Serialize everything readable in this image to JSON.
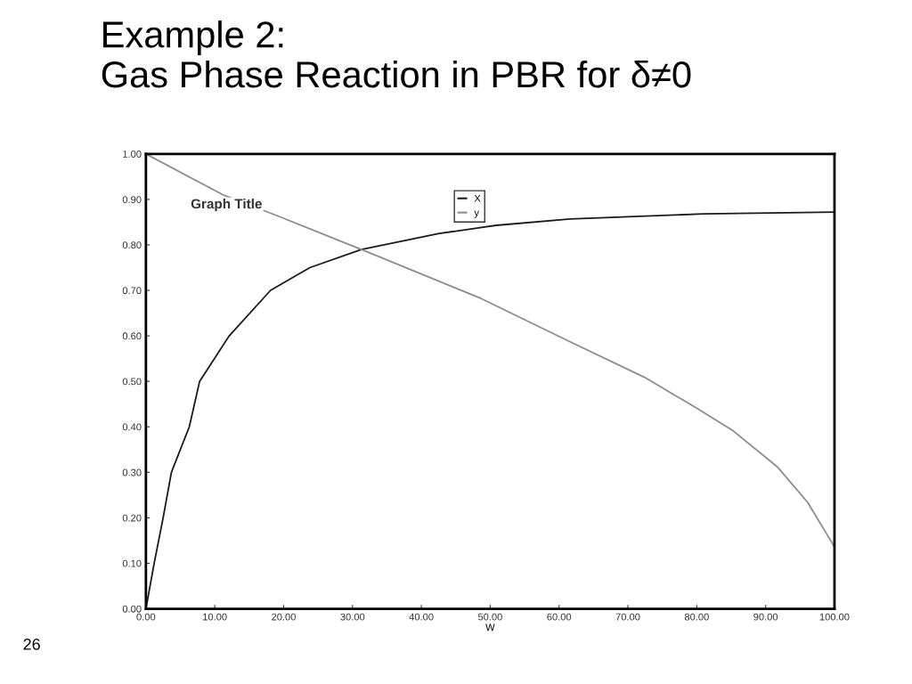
{
  "chart_data": {
    "type": "line",
    "title": "Example 2:\nGas Phase Reaction in PBR for δ≠0",
    "xlabel": "W",
    "annotations": [
      "Graph Title",
      "26"
    ],
    "series": [
      {
        "name": "X",
        "color": "#1a1a1a",
        "x": [
          0,
          1.2,
          2.5,
          3.7,
          6.3,
          7.8,
          12.1,
          18.1,
          23.8,
          31.3,
          42.6,
          50.9,
          61.6,
          81,
          100
        ],
        "values": [
          0,
          0.1,
          0.2,
          0.3,
          0.4,
          0.5,
          0.6,
          0.7,
          0.75,
          0.79,
          0.825,
          0.843,
          0.857,
          0.868,
          0.872
        ]
      },
      {
        "name": "y",
        "color": "#8c8c8c",
        "x": [
          0,
          11.2,
          19.4,
          31.3,
          48.7,
          61.6,
          72.4,
          76.2,
          80.1,
          85.3,
          91.7,
          96.1,
          100
        ],
        "values": [
          1.0,
          0.91,
          0.862,
          0.79,
          0.682,
          0.587,
          0.509,
          0.475,
          0.44,
          0.391,
          0.312,
          0.234,
          0.136
        ]
      }
    ],
    "xlim": [
      0,
      100
    ],
    "ylim": [
      0,
      1
    ],
    "xticks": [
      {
        "value": 0,
        "label": "0.00"
      },
      {
        "value": 10,
        "label": "10.00"
      },
      {
        "value": 20,
        "label": "20.00"
      },
      {
        "value": 30,
        "label": "30.00"
      },
      {
        "value": 40,
        "label": "40.00"
      },
      {
        "value": 50,
        "label": "50.00"
      },
      {
        "value": 60,
        "label": "60.00"
      },
      {
        "value": 70,
        "label": "70.00"
      },
      {
        "value": 80,
        "label": "80.00"
      },
      {
        "value": 90,
        "label": "90.00"
      },
      {
        "value": 100,
        "label": "100.00"
      }
    ],
    "yticks": [
      {
        "value": 0,
        "label": "0.00"
      },
      {
        "value": 0.1,
        "label": "0.10"
      },
      {
        "value": 0.2,
        "label": "0.20"
      },
      {
        "value": 0.3,
        "label": "0.30"
      },
      {
        "value": 0.4,
        "label": "0.40"
      },
      {
        "value": 0.5,
        "label": "0.50"
      },
      {
        "value": 0.6,
        "label": "0.60"
      },
      {
        "value": 0.7,
        "label": "0.70"
      },
      {
        "value": 0.8,
        "label": "0.80"
      },
      {
        "value": 0.9,
        "label": "0.90"
      },
      {
        "value": 1.0,
        "label": "1.00"
      }
    ],
    "grid": false,
    "legend": "top",
    "marker": "none",
    "line_style": "solid"
  }
}
